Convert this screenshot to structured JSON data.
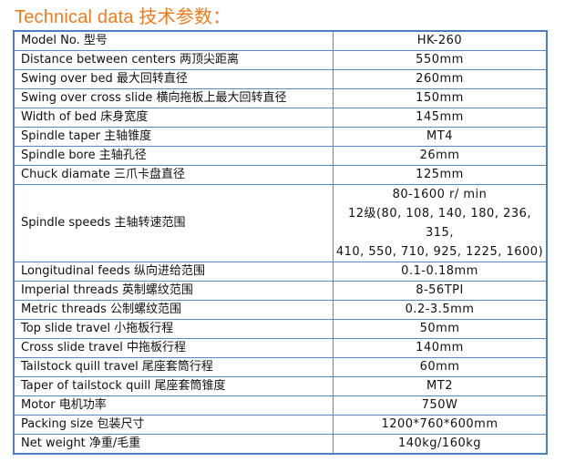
{
  "title": "Technical data 技术参数：",
  "rows": [
    {
      "label": "Model No.  型号",
      "value": "HK-260"
    },
    {
      "label": "Distance between centers  两顶尖距离",
      "value": "550mm"
    },
    {
      "label": "Swing over bed  最大回转直径",
      "value": "260mm"
    },
    {
      "label": "Swing over cross slide  横向拖板上最大回转直径",
      "value": "150mm"
    },
    {
      "label": "Width of bed  床身宽度",
      "value": "145mm"
    },
    {
      "label": "Spindle taper  主轴锥度",
      "value": "MT4"
    },
    {
      "label": "Spindle bore  主轴孔径",
      "value": "26mm"
    },
    {
      "label": "Chuck diamate  三爪卡盘直径",
      "value": "125mm"
    },
    {
      "label": "Spindle speeds  主轴转速范围",
      "value_lines": [
        "80-1600 r/ min",
        "12级(80, 108, 140, 180, 236, 315,",
        "410, 550, 710, 925, 1225, 1600)"
      ]
    },
    {
      "label": "Longitudinal feeds  纵向进给范围",
      "value": "0.1-0.18mm"
    },
    {
      "label": "Imperial threads  英制螺纹范围",
      "value": "8-56TPI"
    },
    {
      "label": "Metric threads  公制螺纹范围",
      "value": "0.2-3.5mm"
    },
    {
      "label": "Top slide travel  小拖板行程",
      "value": "50mm"
    },
    {
      "label": "Cross slide travel  中拖板行程",
      "value": "140mm"
    },
    {
      "label": "Tailstock quill travel  尾座套筒行程",
      "value": "60mm"
    },
    {
      "label": "Taper of tailstock quill  尾座套筒锥度",
      "value": "MT2"
    },
    {
      "label": "Motor  电机功率",
      "value": "750W"
    },
    {
      "label": "Packing size 包装尺寸",
      "value": "1200*760*600mm"
    },
    {
      "label": "Net weight  净重/毛重",
      "value": "140kg/160kg"
    }
  ]
}
